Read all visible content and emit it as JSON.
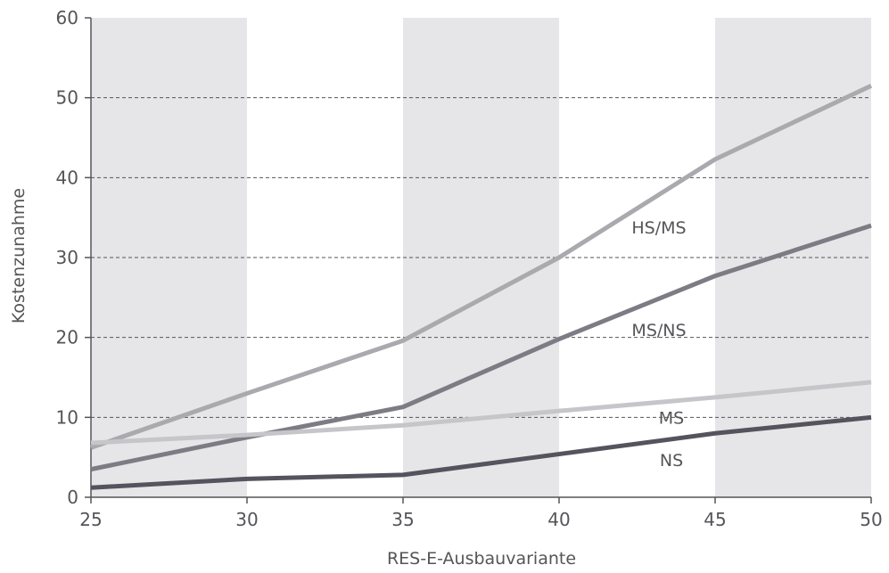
{
  "chart_data": {
    "type": "line",
    "title": "",
    "xlabel": "RES-E-Ausbauvariante",
    "ylabel": "Kostenzunahme",
    "x": [
      25,
      30,
      35,
      40,
      45,
      50
    ],
    "xlim": [
      25,
      50
    ],
    "ylim": [
      0,
      60
    ],
    "xticks": [
      "25",
      "30",
      "35",
      "40",
      "45",
      "50"
    ],
    "yticks": [
      "0",
      "10",
      "20",
      "30",
      "40",
      "50",
      "60"
    ],
    "grid": "horizontal dashed",
    "background_bands": [
      [
        25,
        30
      ],
      [
        35,
        40
      ],
      [
        45,
        50
      ]
    ],
    "series": [
      {
        "name": "HS/MS",
        "values": [
          6.2,
          13.0,
          19.6,
          30.0,
          42.3,
          51.5
        ],
        "color": "#a9a9ae"
      },
      {
        "name": "MS/NS",
        "values": [
          3.5,
          7.5,
          11.3,
          19.8,
          27.7,
          34.0
        ],
        "color": "#7d7c84"
      },
      {
        "name": "MS",
        "values": [
          6.8,
          7.8,
          9.0,
          10.8,
          12.5,
          14.4
        ],
        "color": "#c6c5ca"
      },
      {
        "name": "NS",
        "values": [
          1.2,
          2.3,
          2.8,
          5.4,
          8.0,
          10.0
        ],
        "color": "#55545e"
      }
    ]
  }
}
